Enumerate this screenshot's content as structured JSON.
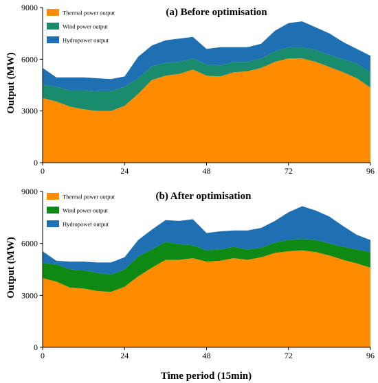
{
  "figure": {
    "xlabel": "Time period (15min)",
    "ylabel": "Output (MW)"
  },
  "chart_data": [
    {
      "type": "area",
      "title": "(a) Before optimisation",
      "xlabel": "Time period (15min)",
      "ylabel": "Output (MW)",
      "xlim": [
        0,
        96
      ],
      "ylim": [
        0,
        9000
      ],
      "xticks": [
        0,
        24,
        48,
        72,
        96
      ],
      "yticks": [
        0,
        3000,
        6000,
        9000
      ],
      "stacked": true,
      "x": [
        0,
        4,
        8,
        12,
        16,
        20,
        24,
        28,
        32,
        36,
        40,
        44,
        48,
        52,
        56,
        60,
        64,
        68,
        72,
        76,
        80,
        84,
        88,
        92,
        96
      ],
      "series": [
        {
          "name": "Thermal power output",
          "color": "#ff8c00",
          "values": [
            3750,
            3550,
            3250,
            3100,
            3000,
            3000,
            3300,
            4000,
            4800,
            5050,
            5150,
            5400,
            5050,
            5000,
            5250,
            5300,
            5500,
            5850,
            6050,
            6050,
            5850,
            5550,
            5250,
            4900,
            4350
          ]
        },
        {
          "name": "Wind power output",
          "color": "#1a8c6e",
          "values": [
            800,
            850,
            950,
            1100,
            1150,
            1150,
            1100,
            900,
            800,
            750,
            700,
            650,
            650,
            650,
            600,
            550,
            550,
            600,
            650,
            650,
            700,
            700,
            750,
            850,
            900
          ]
        },
        {
          "name": "Hydropower output",
          "color": "#1f6fb3",
          "values": [
            950,
            550,
            750,
            750,
            750,
            700,
            600,
            1250,
            1200,
            1300,
            1350,
            1250,
            900,
            1050,
            850,
            850,
            850,
            1200,
            1400,
            1500,
            1300,
            1250,
            1000,
            850,
            950
          ]
        }
      ]
    },
    {
      "type": "area",
      "title": "(b) After optimisation",
      "xlabel": "Time period (15min)",
      "ylabel": "Output (MW)",
      "xlim": [
        0,
        96
      ],
      "ylim": [
        0,
        9000
      ],
      "xticks": [
        0,
        24,
        48,
        72,
        96
      ],
      "yticks": [
        0,
        3000,
        6000,
        9000
      ],
      "stacked": true,
      "x": [
        0,
        4,
        8,
        12,
        16,
        20,
        24,
        28,
        32,
        36,
        40,
        44,
        48,
        52,
        56,
        60,
        64,
        68,
        72,
        76,
        80,
        84,
        88,
        92,
        96
      ],
      "series": [
        {
          "name": "Thermal power output",
          "color": "#ff8c00",
          "values": [
            4000,
            3800,
            3450,
            3400,
            3250,
            3200,
            3500,
            4100,
            4600,
            5050,
            5050,
            5150,
            4950,
            5000,
            5150,
            5050,
            5200,
            5450,
            5550,
            5600,
            5500,
            5300,
            5050,
            4850,
            4600
          ]
        },
        {
          "name": "Wind power output",
          "color": "#0e8a14",
          "values": [
            850,
            1000,
            1050,
            1050,
            1050,
            1000,
            1000,
            1150,
            1050,
            1050,
            900,
            750,
            650,
            650,
            650,
            600,
            550,
            600,
            650,
            650,
            700,
            700,
            750,
            800,
            900
          ]
        },
        {
          "name": "Hydropower output",
          "color": "#1f6fb3",
          "values": [
            700,
            200,
            450,
            500,
            600,
            700,
            700,
            950,
            1150,
            1250,
            1350,
            1500,
            1000,
            1050,
            950,
            1100,
            1150,
            1250,
            1600,
            1900,
            1700,
            1550,
            1200,
            850,
            700
          ]
        }
      ]
    }
  ]
}
